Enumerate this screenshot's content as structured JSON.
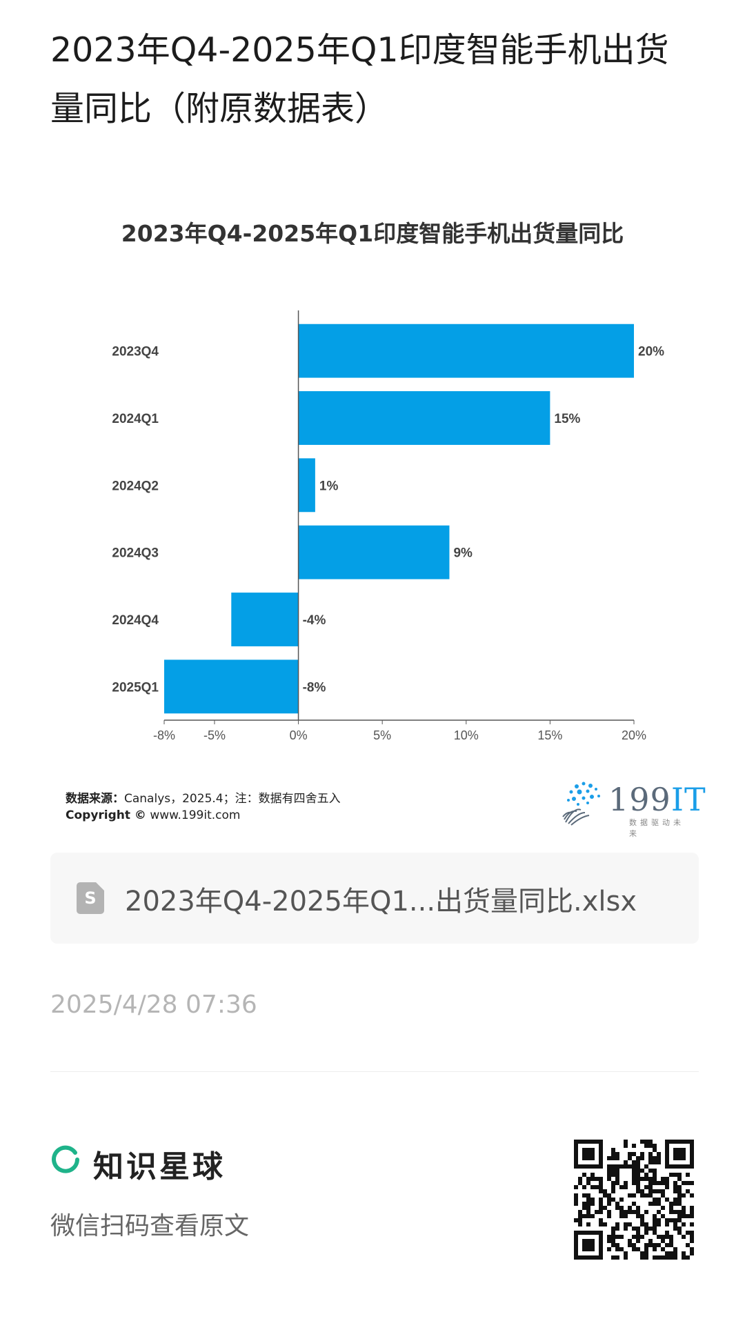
{
  "page": {
    "title": "2023年Q4-2025年Q1印度智能手机出货量同比（附原数据表）"
  },
  "chart_data": {
    "type": "bar",
    "orientation": "horizontal",
    "title": "2023年Q4-2025年Q1印度智能手机出货量同比",
    "categories": [
      "2023Q4",
      "2024Q1",
      "2024Q2",
      "2024Q3",
      "2024Q4",
      "2025Q1"
    ],
    "values": [
      20,
      15,
      1,
      9,
      -4,
      -8
    ],
    "value_labels": [
      "20%",
      "15%",
      "1%",
      "9%",
      "-4%",
      "-8%"
    ],
    "x_ticks": [
      -8,
      -5,
      0,
      5,
      10,
      15,
      20
    ],
    "x_tick_labels": [
      "-8%",
      "-5%",
      "0%",
      "5%",
      "10%",
      "15%",
      "20%"
    ],
    "xlim": [
      -8,
      20
    ],
    "grid": false,
    "bar_color": "#049fe6"
  },
  "source": {
    "label": "数据来源：",
    "text": "Canalys，2025.4；注：数据有四舍五入",
    "copyright_label": "Copyright ©",
    "copyright_text": "www.199it.com"
  },
  "logo": {
    "main": "199",
    "accent": "IT",
    "tagline": "数据驱动未来"
  },
  "attachment": {
    "icon": "spreadsheet-file-icon",
    "icon_letter": "S",
    "file_name": "2023年Q4-2025年Q1...出货量同比.xlsx"
  },
  "timestamp": "2025/4/28 07:36",
  "footer": {
    "brand_name": "知识星球",
    "brand_color": "#1fb38a",
    "scan_hint": "微信扫码查看原文"
  }
}
